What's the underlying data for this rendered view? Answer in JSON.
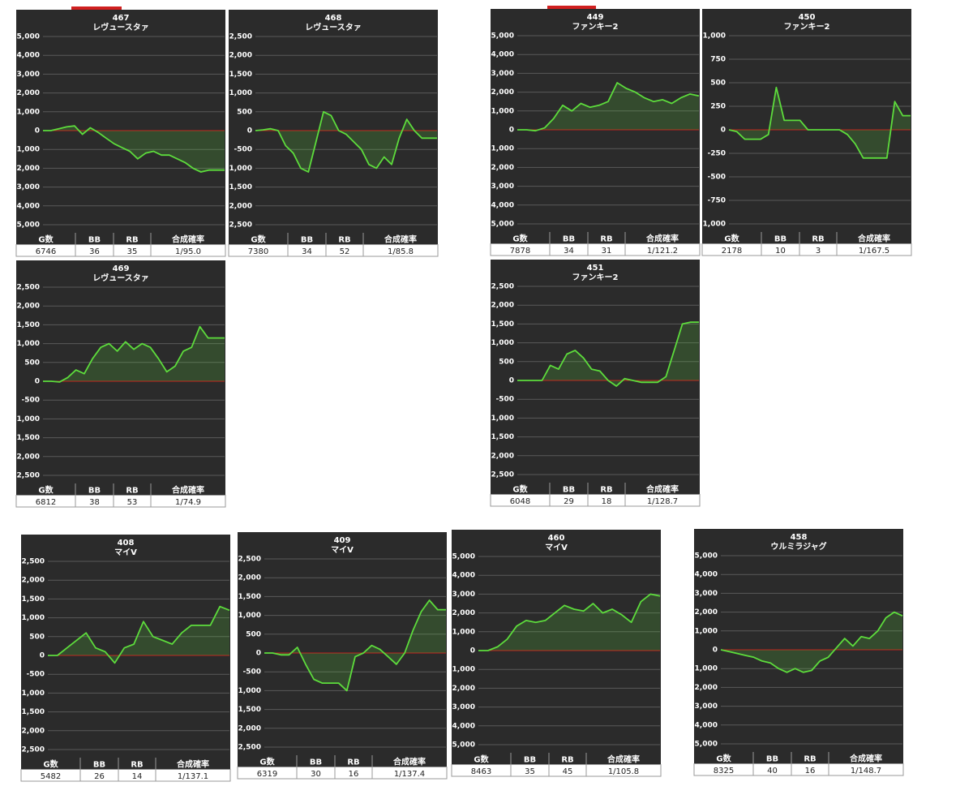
{
  "chart_data": [
    {
      "type": "line",
      "title": "467",
      "subtitle": "レヴュースタァ",
      "color": "#5ddc3c",
      "grid": true,
      "ylim": [
        -5000,
        5000
      ],
      "yticks": [
        {
          "value": 5000,
          "label": "5,000"
        },
        {
          "value": 4000,
          "label": "4,000"
        },
        {
          "value": 3000,
          "label": "3,000"
        },
        {
          "value": 2000,
          "label": "2,000"
        },
        {
          "value": 1000,
          "label": "1,000"
        },
        0,
        {
          "value": -1000,
          "label": "-1,000"
        },
        {
          "value": -2000,
          "label": "-2,000"
        },
        {
          "value": -3000,
          "label": "-3,000"
        },
        {
          "value": -4000,
          "label": "-4,000"
        },
        {
          "value": -5000,
          "label": "-5,000"
        }
      ],
      "values": [
        0,
        0,
        100,
        200,
        250,
        -200,
        150,
        -100,
        -400,
        -700,
        -900,
        -1100,
        -1500,
        -1200,
        -1100,
        -1300,
        -1300,
        -1500,
        -1700,
        -2000,
        -2200,
        -2100,
        -2100,
        -2100
      ],
      "table": {
        "columns": [
          "G数",
          "BB",
          "RB",
          "合成確率"
        ],
        "row": [
          6746,
          36,
          35,
          "1/95.0"
        ]
      }
    },
    {
      "type": "line",
      "title": "468",
      "subtitle": "レヴュースタァ",
      "color": "#5ddc3c",
      "grid": true,
      "ylim": [
        -2500,
        2500
      ],
      "yticks": [
        {
          "value": 2500,
          "label": "2,500"
        },
        {
          "value": 2000,
          "label": "2,000"
        },
        {
          "value": 1500,
          "label": "1,500"
        },
        {
          "value": 1000,
          "label": "1,000"
        },
        500,
        0,
        -500,
        {
          "value": -1000,
          "label": "-1,000"
        },
        {
          "value": -1500,
          "label": "-1,500"
        },
        {
          "value": -2000,
          "label": "-2,000"
        },
        {
          "value": -2500,
          "label": "-2,500"
        }
      ],
      "values": [
        0,
        20,
        50,
        0,
        -400,
        -600,
        -1000,
        -1100,
        -300,
        500,
        400,
        0,
        -100,
        -300,
        -500,
        -900,
        -1000,
        -700,
        -900,
        -200,
        300,
        0,
        -200,
        -200,
        -200
      ],
      "table": {
        "columns": [
          "G数",
          "BB",
          "RB",
          "合成確率"
        ],
        "row": [
          7380,
          34,
          52,
          "1/85.8"
        ]
      }
    },
    {
      "type": "line",
      "title": "449",
      "subtitle": "ファンキー2",
      "color": "#5ddc3c",
      "grid": true,
      "ylim": [
        -5000,
        5000
      ],
      "yticks": [
        {
          "value": 5000,
          "label": "5,000"
        },
        {
          "value": 4000,
          "label": "4,000"
        },
        {
          "value": 3000,
          "label": "3,000"
        },
        {
          "value": 2000,
          "label": "2,000"
        },
        {
          "value": 1000,
          "label": "1,000"
        },
        0,
        {
          "value": -1000,
          "label": "-1,000"
        },
        {
          "value": -2000,
          "label": "-2,000"
        },
        {
          "value": -3000,
          "label": "-3,000"
        },
        {
          "value": -4000,
          "label": "-4,000"
        },
        {
          "value": -5000,
          "label": "-5,000"
        }
      ],
      "values": [
        0,
        0,
        -50,
        100,
        600,
        1300,
        1000,
        1400,
        1200,
        1300,
        1500,
        2500,
        2200,
        2000,
        1700,
        1500,
        1600,
        1400,
        1700,
        1900,
        1800
      ],
      "table": {
        "columns": [
          "G数",
          "BB",
          "RB",
          "合成確率"
        ],
        "row": [
          7878,
          34,
          31,
          "1/121.2"
        ]
      }
    },
    {
      "type": "line",
      "title": "450",
      "subtitle": "ファンキー2",
      "color": "#5ddc3c",
      "grid": true,
      "ylim": [
        -1000,
        1000
      ],
      "yticks": [
        {
          "value": 1000,
          "label": "1,000"
        },
        750,
        500,
        250,
        0,
        -250,
        -500,
        -750,
        {
          "value": -1000,
          "label": "-1,000"
        }
      ],
      "values": [
        0,
        -20,
        -100,
        -100,
        -100,
        -50,
        450,
        100,
        100,
        100,
        0,
        0,
        0,
        0,
        0,
        -50,
        -150,
        -300,
        -300,
        -300,
        -300,
        300,
        150,
        150
      ],
      "table": {
        "columns": [
          "G数",
          "BB",
          "RB",
          "合成確率"
        ],
        "row": [
          2178,
          10,
          3,
          "1/167.5"
        ]
      }
    },
    {
      "type": "line",
      "title": "469",
      "subtitle": "レヴュースタァ",
      "color": "#5ddc3c",
      "grid": true,
      "ylim": [
        -2500,
        2500
      ],
      "yticks": [
        {
          "value": 2500,
          "label": "2,500"
        },
        {
          "value": 2000,
          "label": "2,000"
        },
        {
          "value": 1500,
          "label": "1,500"
        },
        {
          "value": 1000,
          "label": "1,000"
        },
        500,
        0,
        -500,
        {
          "value": -1000,
          "label": "-1,000"
        },
        {
          "value": -1500,
          "label": "-1,500"
        },
        {
          "value": -2000,
          "label": "-2,000"
        },
        {
          "value": -2500,
          "label": "-2,500"
        }
      ],
      "values": [
        0,
        0,
        -20,
        100,
        300,
        200,
        600,
        900,
        1000,
        800,
        1050,
        850,
        1000,
        900,
        600,
        250,
        400,
        800,
        900,
        1450,
        1150,
        1150,
        1150
      ],
      "table": {
        "columns": [
          "G数",
          "BB",
          "RB",
          "合成確率"
        ],
        "row": [
          6812,
          38,
          53,
          "1/74.9"
        ]
      }
    },
    {
      "type": "line",
      "title": "451",
      "subtitle": "ファンキー2",
      "color": "#5ddc3c",
      "grid": true,
      "ylim": [
        -2500,
        2500
      ],
      "yticks": [
        {
          "value": 2500,
          "label": "2,500"
        },
        {
          "value": 2000,
          "label": "2,000"
        },
        {
          "value": 1500,
          "label": "1,500"
        },
        {
          "value": 1000,
          "label": "1,000"
        },
        500,
        0,
        -500,
        {
          "value": -1000,
          "label": "-1,000"
        },
        {
          "value": -1500,
          "label": "-1,500"
        },
        {
          "value": -2000,
          "label": "-2,000"
        },
        {
          "value": -2500,
          "label": "-2,500"
        }
      ],
      "values": [
        0,
        0,
        0,
        0,
        400,
        300,
        700,
        800,
        600,
        300,
        250,
        0,
        -150,
        50,
        0,
        -50,
        -50,
        -50,
        100,
        800,
        1500,
        1550,
        1550
      ],
      "table": {
        "columns": [
          "G数",
          "BB",
          "RB",
          "合成確率"
        ],
        "row": [
          6048,
          29,
          18,
          "1/128.7"
        ]
      }
    },
    {
      "type": "line",
      "title": "408",
      "subtitle": "マイV",
      "color": "#5ddc3c",
      "grid": true,
      "ylim": [
        -2500,
        2500
      ],
      "yticks": [
        {
          "value": 2500,
          "label": "2,500"
        },
        {
          "value": 2000,
          "label": "2,000"
        },
        {
          "value": 1500,
          "label": "1,500"
        },
        {
          "value": 1000,
          "label": "1,000"
        },
        500,
        0,
        -500,
        {
          "value": -1000,
          "label": "-1,000"
        },
        {
          "value": -1500,
          "label": "-1,500"
        },
        {
          "value": -2000,
          "label": "-2,000"
        },
        {
          "value": -2500,
          "label": "-2,500"
        }
      ],
      "values": [
        0,
        0,
        200,
        400,
        600,
        200,
        100,
        -200,
        200,
        300,
        900,
        500,
        400,
        300,
        600,
        800,
        800,
        800,
        1300,
        1200
      ],
      "table": {
        "columns": [
          "G数",
          "BB",
          "RB",
          "合成確率"
        ],
        "row": [
          5482,
          26,
          14,
          "1/137.1"
        ]
      }
    },
    {
      "type": "line",
      "title": "409",
      "subtitle": "マイV",
      "color": "#5ddc3c",
      "grid": true,
      "ylim": [
        -2500,
        2500
      ],
      "yticks": [
        {
          "value": 2500,
          "label": "2,500"
        },
        {
          "value": 2000,
          "label": "2,000"
        },
        {
          "value": 1500,
          "label": "1,500"
        },
        {
          "value": 1000,
          "label": "1,000"
        },
        500,
        0,
        -500,
        {
          "value": -1000,
          "label": "-1,000"
        },
        {
          "value": -1500,
          "label": "-1,500"
        },
        {
          "value": -2000,
          "label": "-2,000"
        },
        {
          "value": -2500,
          "label": "-2,500"
        }
      ],
      "values": [
        0,
        0,
        -50,
        -50,
        150,
        -300,
        -700,
        -800,
        -800,
        -800,
        -1000,
        -100,
        0,
        200,
        100,
        -100,
        -300,
        0,
        600,
        1100,
        1400,
        1150,
        1150
      ],
      "table": {
        "columns": [
          "G数",
          "BB",
          "RB",
          "合成確率"
        ],
        "row": [
          6319,
          30,
          16,
          "1/137.4"
        ]
      }
    },
    {
      "type": "line",
      "title": "460",
      "subtitle": "マイV",
      "color": "#5ddc3c",
      "grid": true,
      "ylim": [
        -5000,
        5000
      ],
      "yticks": [
        {
          "value": 5000,
          "label": "5,000"
        },
        {
          "value": 4000,
          "label": "4,000"
        },
        {
          "value": 3000,
          "label": "3,000"
        },
        {
          "value": 2000,
          "label": "2,000"
        },
        {
          "value": 1000,
          "label": "1,000"
        },
        0,
        {
          "value": -1000,
          "label": "-1,000"
        },
        {
          "value": -2000,
          "label": "-2,000"
        },
        {
          "value": -3000,
          "label": "-3,000"
        },
        {
          "value": -4000,
          "label": "-4,000"
        },
        {
          "value": -5000,
          "label": "-5,000"
        }
      ],
      "values": [
        0,
        0,
        200,
        600,
        1300,
        1600,
        1500,
        1600,
        2000,
        2400,
        2200,
        2100,
        2500,
        2000,
        2200,
        1900,
        1500,
        2600,
        3000,
        2900
      ],
      "table": {
        "columns": [
          "G数",
          "BB",
          "RB",
          "合成確率"
        ],
        "row": [
          8463,
          35,
          45,
          "1/105.8"
        ]
      }
    },
    {
      "type": "line",
      "title": "458",
      "subtitle": "ウルミラジャグ",
      "color": "#5ddc3c",
      "grid": true,
      "ylim": [
        -5000,
        5000
      ],
      "yticks": [
        {
          "value": 5000,
          "label": "5,000"
        },
        {
          "value": 4000,
          "label": "4,000"
        },
        {
          "value": 3000,
          "label": "3,000"
        },
        {
          "value": 2000,
          "label": "2,000"
        },
        {
          "value": 1000,
          "label": "1,000"
        },
        0,
        {
          "value": -1000,
          "label": "-1,000"
        },
        {
          "value": -2000,
          "label": "-2,000"
        },
        {
          "value": -3000,
          "label": "-3,000"
        },
        {
          "value": -4000,
          "label": "-4,000"
        },
        {
          "value": -5000,
          "label": "-5,000"
        }
      ],
      "values": [
        0,
        -100,
        -200,
        -300,
        -400,
        -600,
        -700,
        -1000,
        -1200,
        -1000,
        -1200,
        -1100,
        -600,
        -400,
        100,
        600,
        200,
        700,
        600,
        1000,
        1700,
        2000,
        1800
      ],
      "table": {
        "columns": [
          "G数",
          "BB",
          "RB",
          "合成確率"
        ],
        "row": [
          8325,
          40,
          16,
          "1/148.7"
        ]
      }
    }
  ]
}
